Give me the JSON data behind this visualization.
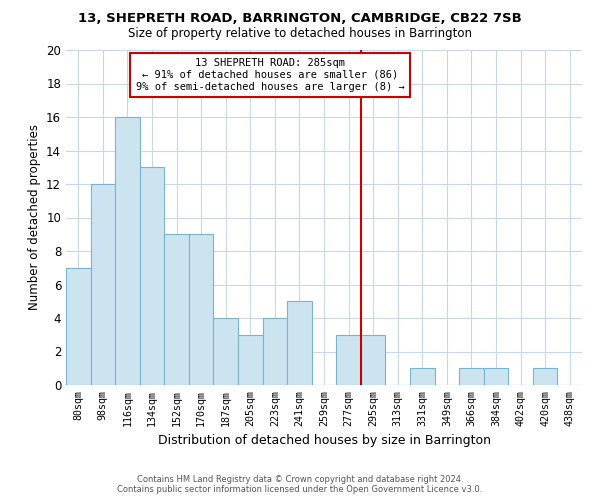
{
  "title1": "13, SHEPRETH ROAD, BARRINGTON, CAMBRIDGE, CB22 7SB",
  "title2": "Size of property relative to detached houses in Barrington",
  "xlabel": "Distribution of detached houses by size in Barrington",
  "ylabel": "Number of detached properties",
  "categories": [
    "80sqm",
    "98sqm",
    "116sqm",
    "134sqm",
    "152sqm",
    "170sqm",
    "187sqm",
    "205sqm",
    "223sqm",
    "241sqm",
    "259sqm",
    "277sqm",
    "295sqm",
    "313sqm",
    "331sqm",
    "349sqm",
    "366sqm",
    "384sqm",
    "402sqm",
    "420sqm",
    "438sqm"
  ],
  "values": [
    7,
    12,
    16,
    13,
    9,
    9,
    4,
    3,
    4,
    5,
    0,
    3,
    3,
    0,
    1,
    0,
    1,
    1,
    0,
    1,
    0
  ],
  "bar_color": "#cce4f0",
  "bar_edge_color": "#7ab4cc",
  "vline_color": "#cc0000",
  "annotation_title": "13 SHEPRETH ROAD: 285sqm",
  "annotation_line1": "← 91% of detached houses are smaller (86)",
  "annotation_line2": "9% of semi-detached houses are larger (8) →",
  "annotation_box_color": "#ffffff",
  "annotation_box_edge": "#cc0000",
  "ylim": [
    0,
    20
  ],
  "yticks": [
    0,
    2,
    4,
    6,
    8,
    10,
    12,
    14,
    16,
    18,
    20
  ],
  "footer1": "Contains HM Land Registry data © Crown copyright and database right 2024.",
  "footer2": "Contains public sector information licensed under the Open Government Licence v3.0.",
  "background_color": "#ffffff",
  "grid_color": "#c8d8e8"
}
